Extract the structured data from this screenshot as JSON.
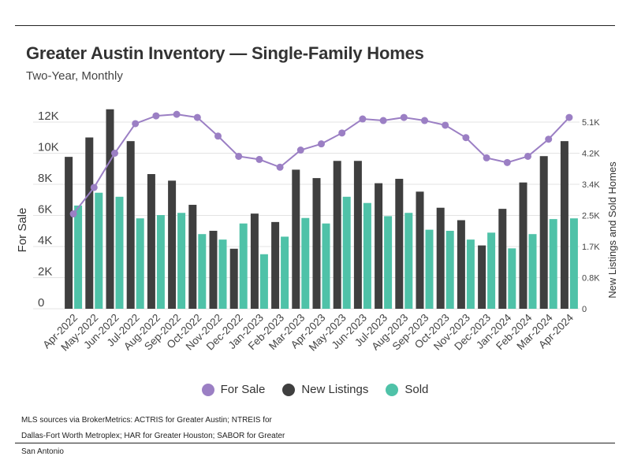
{
  "title": "Greater Austin Inventory — Single-Family Homes",
  "subtitle": "Two-Year, Monthly",
  "source_note": "MLS sources via BrokerMetrics: ACTRIS for Greater Austin; NTREIS for Dallas-Fort Worth Metroplex; HAR for Greater Houston; SABOR for Greater San Antonio",
  "colors": {
    "for_sale": "#9b7fc4",
    "new_listings": "#3f3f3f",
    "sold": "#4fc2a8",
    "grid": "#e3e3e3"
  },
  "chart_data": {
    "type": "bar",
    "categories": [
      "Apr-2022",
      "May-2022",
      "Jun-2022",
      "Jul-2022",
      "Aug-2022",
      "Sep-2022",
      "Oct-2022",
      "Nov-2022",
      "Dec-2022",
      "Jan-2023",
      "Feb-2023",
      "Mar-2023",
      "Apr-2023",
      "May-2023",
      "Jun-2023",
      "Jul-2023",
      "Aug-2023",
      "Sep-2023",
      "Oct-2023",
      "Nov-2023",
      "Dec-2023",
      "Jan-2024",
      "Feb-2024",
      "Mar-2024",
      "Apr-2024"
    ],
    "left_axis": {
      "label": "For Sale",
      "ylim": [
        0,
        12000
      ],
      "ticks": [
        0,
        2000,
        4000,
        6000,
        8000,
        10000,
        12000
      ],
      "tick_labels": [
        "0",
        "2K",
        "4K",
        "6K",
        "8K",
        "10K",
        "12K"
      ]
    },
    "right_axis": {
      "label": "New Listings and Sold Homes",
      "ylim": [
        0,
        5100
      ],
      "ticks": [
        0,
        850,
        1700,
        2550,
        3400,
        4250,
        5100
      ],
      "tick_labels": [
        "0",
        "0.8K",
        "1.7K",
        "2.5K",
        "3.4K",
        "4.2K",
        "5.1K"
      ]
    },
    "series": [
      {
        "name": "For Sale",
        "type": "line",
        "axis": "left",
        "values": [
          6100,
          7800,
          10000,
          11900,
          12400,
          12500,
          12300,
          11100,
          9800,
          9600,
          9100,
          10200,
          10600,
          11300,
          12200,
          12100,
          12300,
          12100,
          11800,
          11000,
          9700,
          9400,
          9800,
          10900,
          12300
        ]
      },
      {
        "name": "New Listings",
        "type": "bar",
        "axis": "right",
        "values": [
          4150,
          4680,
          5450,
          4580,
          3680,
          3500,
          2840,
          2130,
          1640,
          2600,
          2370,
          3800,
          3570,
          4040,
          4040,
          3430,
          3550,
          3200,
          2760,
          2420,
          1730,
          2730,
          3450,
          4170,
          4580
        ]
      },
      {
        "name": "Sold",
        "type": "bar",
        "axis": "right",
        "values": [
          2820,
          3170,
          3060,
          2470,
          2560,
          2620,
          2040,
          1890,
          2330,
          1490,
          1970,
          2480,
          2330,
          3060,
          2890,
          2530,
          2620,
          2160,
          2130,
          1890,
          2080,
          1650,
          2040,
          2450,
          2470
        ]
      }
    ],
    "legend": [
      "For Sale",
      "New Listings",
      "Sold"
    ],
    "legend_position": "bottom",
    "grid": true
  }
}
